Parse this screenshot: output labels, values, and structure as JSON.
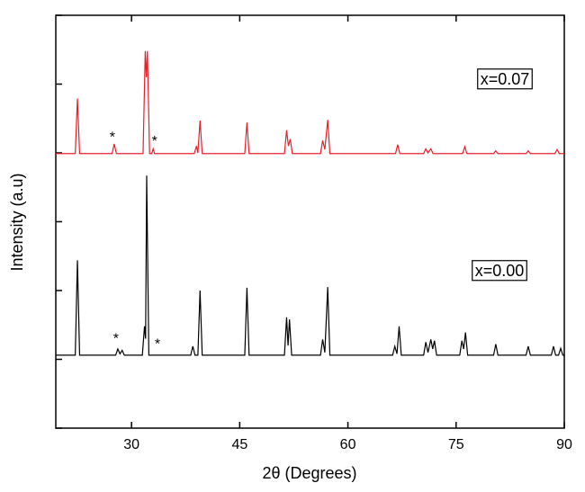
{
  "chart_data": {
    "type": "line",
    "xlabel": "2θ (Degrees)",
    "ylabel": "Intensity (a.u)",
    "xlim": [
      19.5,
      90
    ],
    "xticks": [
      30,
      45,
      60,
      75,
      90
    ],
    "ylim": [
      0,
      6
    ],
    "yticks": [
      0,
      1,
      2,
      3,
      4,
      5,
      6
    ],
    "series": [
      {
        "name": "x=0.07",
        "color": "#e8202a",
        "x": [
          19.5,
          22.2,
          22.5,
          22.8,
          27.3,
          27.6,
          27.9,
          31.6,
          31.9,
          32.05,
          32.2,
          32.5,
          32.8,
          33.0,
          33.2,
          38.7,
          39.0,
          39.2,
          39.5,
          39.8,
          45.7,
          46.0,
          46.3,
          51.2,
          51.5,
          51.75,
          52.0,
          52.3,
          56.2,
          56.5,
          56.8,
          57.2,
          57.5,
          66.6,
          66.9,
          67.2,
          70.5,
          70.8,
          71.1,
          71.5,
          71.8,
          75.9,
          76.2,
          76.5,
          80.2,
          80.5,
          80.8,
          84.7,
          85.0,
          85.3,
          88.7,
          89.0,
          89.3,
          90
        ],
        "values": [
          3.99,
          3.99,
          4.79,
          3.99,
          3.99,
          4.13,
          3.99,
          3.99,
          5.48,
          5.1,
          5.48,
          3.99,
          3.99,
          4.06,
          3.99,
          3.99,
          4.1,
          4.0,
          4.47,
          3.99,
          3.99,
          4.44,
          3.99,
          3.99,
          4.33,
          4.1,
          4.2,
          3.99,
          3.99,
          4.18,
          4.05,
          4.48,
          3.99,
          3.99,
          4.12,
          3.99,
          3.99,
          4.06,
          4.0,
          4.06,
          3.99,
          3.99,
          4.09,
          3.99,
          3.99,
          4.03,
          3.99,
          3.99,
          4.03,
          3.99,
          3.99,
          4.05,
          3.99,
          3.99
        ]
      },
      {
        "name": "x=0.00",
        "color": "#000000",
        "x": [
          19.5,
          22.2,
          22.5,
          22.8,
          27.8,
          28.1,
          28.4,
          28.7,
          29.0,
          31.5,
          31.8,
          31.95,
          32.1,
          32.4,
          38.2,
          38.5,
          38.8,
          39.2,
          39.5,
          39.8,
          45.7,
          46.0,
          46.3,
          51.2,
          51.5,
          51.7,
          51.9,
          52.2,
          56.2,
          56.5,
          56.8,
          57.2,
          57.5,
          66.2,
          66.5,
          66.8,
          67.1,
          67.4,
          70.5,
          70.8,
          71.1,
          71.5,
          71.75,
          72.0,
          72.3,
          75.5,
          75.8,
          76.05,
          76.3,
          76.6,
          80.2,
          80.5,
          80.8,
          84.7,
          85.0,
          85.3,
          88.2,
          88.5,
          88.8,
          89.2,
          89.5,
          89.8,
          90
        ],
        "values": [
          1.06,
          1.06,
          2.44,
          1.06,
          1.06,
          1.15,
          1.08,
          1.13,
          1.06,
          1.06,
          1.48,
          1.3,
          3.67,
          1.06,
          1.06,
          1.19,
          1.06,
          1.06,
          2.0,
          1.06,
          1.06,
          2.04,
          1.06,
          1.06,
          1.61,
          1.2,
          1.58,
          1.06,
          1.06,
          1.29,
          1.1,
          2.05,
          1.06,
          1.06,
          1.19,
          1.08,
          1.48,
          1.06,
          1.06,
          1.25,
          1.1,
          1.29,
          1.15,
          1.27,
          1.06,
          1.06,
          1.27,
          1.15,
          1.39,
          1.06,
          1.06,
          1.22,
          1.06,
          1.06,
          1.19,
          1.06,
          1.06,
          1.19,
          1.06,
          1.06,
          1.16,
          1.06,
          1.06
        ]
      }
    ],
    "annotations": [
      {
        "text": "*",
        "x": 27.35,
        "y": 4.26
      },
      {
        "text": "*",
        "x": 33.2,
        "y": 4.2
      },
      {
        "text": "*",
        "x": 27.85,
        "y": 1.33
      },
      {
        "text": "*",
        "x": 33.6,
        "y": 1.25
      }
    ]
  }
}
